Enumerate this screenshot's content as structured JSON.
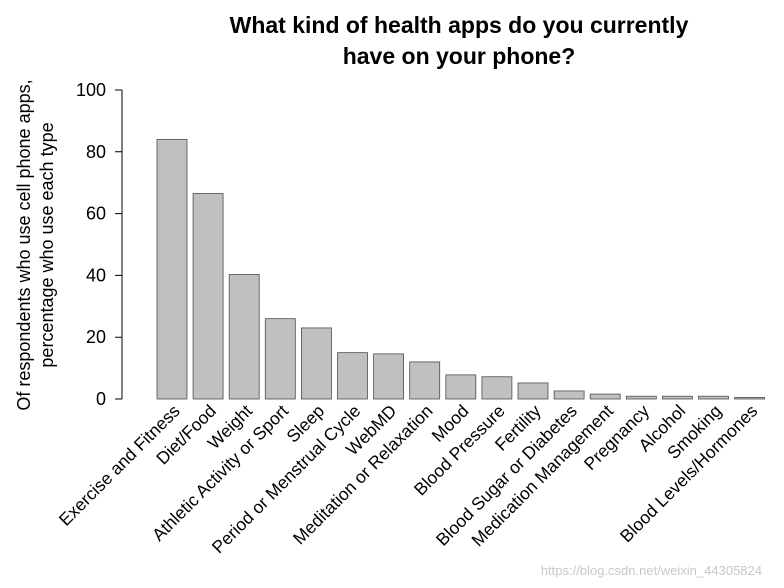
{
  "chart_data": {
    "type": "bar",
    "title_line1": "What kind of health apps do you currently",
    "title_line2": "have on your phone?",
    "ylabel_line1": "Of respondents who use cell phone apps,",
    "ylabel_line2": "percentage who use each type",
    "xlabel": "",
    "ylim": [
      0,
      100
    ],
    "yticks": [
      0,
      20,
      40,
      60,
      80,
      100
    ],
    "categories": [
      "Exercise and Fitness",
      "Diet/Food",
      "Weight",
      "Athletic Activity or Sport",
      "Sleep",
      "Period or Menstrual Cycle",
      "WebMD",
      "Meditation or Relaxation",
      "Mood",
      "Blood Pressure",
      "Fertility",
      "Blood Sugar or Diabetes",
      "Medication Management",
      "Pregnancy",
      "Alcohol",
      "Smoking",
      "Blood Levels/Hormones"
    ],
    "values": [
      84,
      66.5,
      40.3,
      26,
      23,
      15,
      14.6,
      12,
      7.8,
      7.2,
      5.2,
      2.6,
      1.6,
      0.9,
      0.9,
      0.9,
      0.5
    ],
    "bar_color": "#c0c0c0"
  },
  "watermark": "https://blog.csdn.net/weixin_44305824"
}
